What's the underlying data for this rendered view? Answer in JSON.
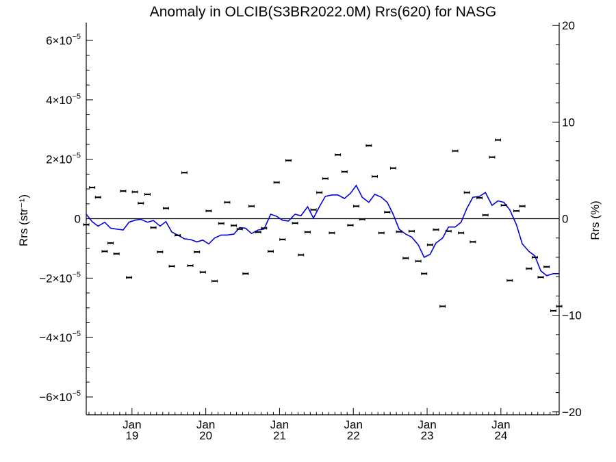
{
  "chart_data": {
    "type": "scatter",
    "title": "Anomaly in OLCIB(S3BR2022.0M) Rrs(620) for NASG",
    "ylabel_left": "Rrs (str⁻¹)",
    "ylabel_right": "Rrs (%)",
    "ylim_left": [
      -6.6e-05,
      6.6e-05
    ],
    "ylim_right": [
      -20.3,
      20.3
    ],
    "xlim": [
      2018.38,
      2024.79
    ],
    "left_ticks": [
      {
        "value": 6e-05,
        "mantissa": "6×10",
        "exp": "−5"
      },
      {
        "value": 4e-05,
        "mantissa": "4×10",
        "exp": "−5"
      },
      {
        "value": 2e-05,
        "mantissa": "2×10",
        "exp": "−5"
      },
      {
        "value": 0,
        "mantissa": "0",
        "exp": ""
      },
      {
        "value": -2e-05,
        "mantissa": "−2×10",
        "exp": "−5"
      },
      {
        "value": -4e-05,
        "mantissa": "−4×10",
        "exp": "−5"
      },
      {
        "value": -6e-05,
        "mantissa": "−6×10",
        "exp": "−5"
      }
    ],
    "right_ticks": [
      {
        "value": 20,
        "label": "20"
      },
      {
        "value": 10,
        "label": "10"
      },
      {
        "value": 0,
        "label": "0"
      },
      {
        "value": -10,
        "label": "−10"
      },
      {
        "value": -20,
        "label": "−20"
      }
    ],
    "x_ticks": [
      {
        "value": 2019,
        "month": "Jan",
        "year": "19"
      },
      {
        "value": 2020,
        "month": "Jan",
        "year": "20"
      },
      {
        "value": 2021,
        "month": "Jan",
        "year": "21"
      },
      {
        "value": 2022,
        "month": "Jan",
        "year": "22"
      },
      {
        "value": 2023,
        "month": "Jan",
        "year": "23"
      },
      {
        "value": 2024,
        "month": "Jan",
        "year": "24"
      }
    ],
    "points": [
      [
        2018.38,
        -2e-06
      ],
      [
        2018.46,
        1.05e-05
      ],
      [
        2018.54,
        7.2e-06
      ],
      [
        2018.63,
        -1.1e-05
      ],
      [
        2018.71,
        -8.2e-06
      ],
      [
        2018.79,
        -1.18e-05
      ],
      [
        2018.88,
        9.3e-06
      ],
      [
        2018.96,
        -1.98e-05
      ],
      [
        2019.04,
        9e-06
      ],
      [
        2019.12,
        5.2e-06
      ],
      [
        2019.21,
        8.2e-06
      ],
      [
        2019.29,
        -3e-06
      ],
      [
        2019.38,
        -1.12e-05
      ],
      [
        2019.46,
        3.5e-06
      ],
      [
        2019.54,
        -1.6e-05
      ],
      [
        2019.62,
        -5.6e-06
      ],
      [
        2019.71,
        1.55e-05
      ],
      [
        2019.79,
        -1.58e-05
      ],
      [
        2019.88,
        -1.12e-05
      ],
      [
        2019.96,
        -1.8e-05
      ],
      [
        2020.04,
        2.6e-06
      ],
      [
        2020.12,
        -2.1e-05
      ],
      [
        2020.21,
        -1.6e-06
      ],
      [
        2020.29,
        5.5e-06
      ],
      [
        2020.38,
        -2.3e-06
      ],
      [
        2020.46,
        -3.5e-06
      ],
      [
        2020.54,
        -1.85e-05
      ],
      [
        2020.62,
        4.2e-06
      ],
      [
        2020.71,
        -4.5e-06
      ],
      [
        2020.79,
        -3.2e-06
      ],
      [
        2020.88,
        -1.1e-05
      ],
      [
        2020.96,
        1.22e-05
      ],
      [
        2021.04,
        -7e-06
      ],
      [
        2021.12,
        1.96e-05
      ],
      [
        2021.21,
        -1.5e-06
      ],
      [
        2021.29,
        -1.22e-05
      ],
      [
        2021.38,
        -4.5e-06
      ],
      [
        2021.46,
        3e-06
      ],
      [
        2021.54,
        8.8e-06
      ],
      [
        2021.62,
        1.35e-05
      ],
      [
        2021.71,
        -4.8e-06
      ],
      [
        2021.79,
        2.15e-05
      ],
      [
        2021.88,
        1.58e-05
      ],
      [
        2021.96,
        -2.2e-06
      ],
      [
        2022.04,
        4.2e-06
      ],
      [
        2022.12,
        -2e-07
      ],
      [
        2022.21,
        2.46e-05
      ],
      [
        2022.29,
        1.42e-05
      ],
      [
        2022.38,
        -4.8e-06
      ],
      [
        2022.46,
        2.2e-06
      ],
      [
        2022.54,
        1.7e-05
      ],
      [
        2022.62,
        -4.4e-06
      ],
      [
        2022.71,
        -1.33e-05
      ],
      [
        2022.79,
        -4.2e-06
      ],
      [
        2022.88,
        -1.43e-05
      ],
      [
        2022.96,
        -1.85e-05
      ],
      [
        2023.04,
        -8.8e-06
      ],
      [
        2023.12,
        -3.7e-06
      ],
      [
        2023.21,
        -2.95e-05
      ],
      [
        2023.29,
        -4.2e-06
      ],
      [
        2023.38,
        2.28e-05
      ],
      [
        2023.46,
        -4.8e-06
      ],
      [
        2023.54,
        8.8e-06
      ],
      [
        2023.62,
        -7.8e-06
      ],
      [
        2023.71,
        7e-06
      ],
      [
        2023.79,
        1.2e-06
      ],
      [
        2023.88,
        2.07e-05
      ],
      [
        2023.96,
        2.65e-05
      ],
      [
        2024.04,
        4.5e-06
      ],
      [
        2024.12,
        -2.08e-05
      ],
      [
        2024.21,
        2.6e-06
      ],
      [
        2024.29,
        4.2e-06
      ],
      [
        2024.38,
        -1.68e-05
      ],
      [
        2024.46,
        -1.3e-05
      ],
      [
        2024.54,
        -1.97e-05
      ],
      [
        2024.62,
        -1.62e-05
      ],
      [
        2024.71,
        -3.1e-05
      ],
      [
        2024.79,
        -2.95e-05
      ]
    ],
    "line": [
      [
        2018.38,
        1.5e-06
      ],
      [
        2018.46,
        -1e-06
      ],
      [
        2018.54,
        -2.5e-06
      ],
      [
        2018.63,
        -1.2e-06
      ],
      [
        2018.71,
        -3.2e-06
      ],
      [
        2018.79,
        -3.5e-06
      ],
      [
        2018.88,
        -3.8e-06
      ],
      [
        2018.96,
        -1.2e-06
      ],
      [
        2019.04,
        -5e-07
      ],
      [
        2019.12,
        -2e-07
      ],
      [
        2019.21,
        -1.2e-06
      ],
      [
        2019.29,
        -6e-07
      ],
      [
        2019.38,
        -2.5e-06
      ],
      [
        2019.46,
        -1e-06
      ],
      [
        2019.54,
        -4.5e-06
      ],
      [
        2019.62,
        -5.5e-06
      ],
      [
        2019.71,
        -6.8e-06
      ],
      [
        2019.79,
        -7e-06
      ],
      [
        2019.88,
        -7.8e-06
      ],
      [
        2019.96,
        -7.2e-06
      ],
      [
        2020.04,
        -8.5e-06
      ],
      [
        2020.12,
        -6.5e-06
      ],
      [
        2020.21,
        -5.5e-06
      ],
      [
        2020.29,
        -5.5e-06
      ],
      [
        2020.38,
        -5.2e-06
      ],
      [
        2020.46,
        -3e-06
      ],
      [
        2020.54,
        -3.2e-06
      ],
      [
        2020.62,
        -5e-06
      ],
      [
        2020.71,
        -3.8e-06
      ],
      [
        2020.79,
        -3.5e-06
      ],
      [
        2020.88,
        1.5e-06
      ],
      [
        2020.96,
        8e-07
      ],
      [
        2021.04,
        -5e-07
      ],
      [
        2021.12,
        -8e-07
      ],
      [
        2021.21,
        1.5e-06
      ],
      [
        2021.29,
        1e-06
      ],
      [
        2021.38,
        4e-06
      ],
      [
        2021.46,
        2e-07
      ],
      [
        2021.54,
        4e-06
      ],
      [
        2021.62,
        7.5e-06
      ],
      [
        2021.71,
        8e-06
      ],
      [
        2021.79,
        8e-06
      ],
      [
        2021.88,
        6.8e-06
      ],
      [
        2021.96,
        8.5e-06
      ],
      [
        2022.04,
        1.12e-05
      ],
      [
        2022.12,
        7.2e-06
      ],
      [
        2022.21,
        5.5e-06
      ],
      [
        2022.29,
        8.2e-06
      ],
      [
        2022.38,
        7.2e-06
      ],
      [
        2022.46,
        5.5e-06
      ],
      [
        2022.54,
        1.5e-06
      ],
      [
        2022.62,
        -3.5e-06
      ],
      [
        2022.71,
        -5.2e-06
      ],
      [
        2022.79,
        -6.2e-06
      ],
      [
        2022.88,
        -8.8e-06
      ],
      [
        2022.96,
        -1.3e-05
      ],
      [
        2023.04,
        -1.2e-05
      ],
      [
        2023.12,
        -8.2e-06
      ],
      [
        2023.21,
        -6.5e-06
      ],
      [
        2023.29,
        -2.8e-06
      ],
      [
        2023.38,
        -2.8e-06
      ],
      [
        2023.46,
        -1.2e-06
      ],
      [
        2023.54,
        3.5e-06
      ],
      [
        2023.62,
        7.2e-06
      ],
      [
        2023.71,
        7.5e-06
      ],
      [
        2023.79,
        8.8e-06
      ],
      [
        2023.88,
        4.5e-06
      ],
      [
        2023.96,
        6e-06
      ],
      [
        2024.04,
        5.5e-06
      ],
      [
        2024.12,
        3e-06
      ],
      [
        2024.21,
        -2e-06
      ],
      [
        2024.29,
        -8.5e-06
      ],
      [
        2024.38,
        -1.1e-05
      ],
      [
        2024.46,
        -1.25e-05
      ],
      [
        2024.54,
        -1.75e-05
      ],
      [
        2024.62,
        -1.92e-05
      ],
      [
        2024.71,
        -1.85e-05
      ],
      [
        2024.79,
        -1.85e-05
      ]
    ],
    "line_color": "#0000dd",
    "point_color": "#000000",
    "zero_line": true,
    "grid": false,
    "legend": "none"
  }
}
